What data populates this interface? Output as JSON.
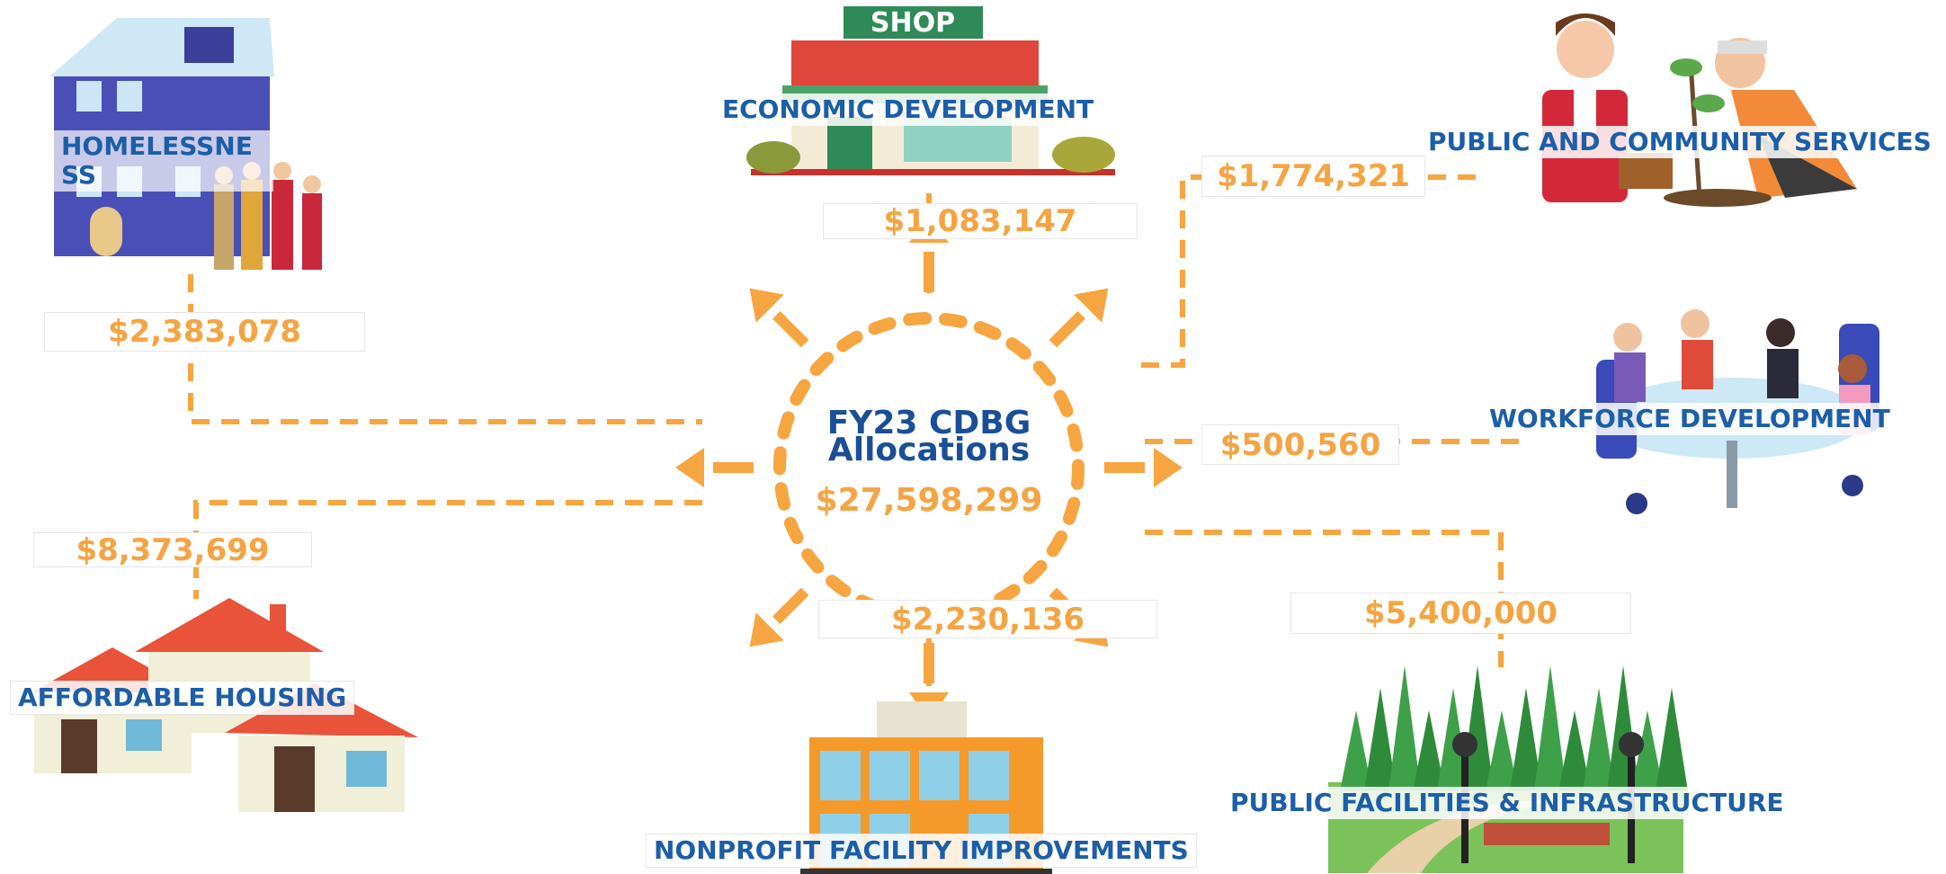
{
  "center": {
    "title_line1": "FY23 CDBG",
    "title_line2": "Allocations",
    "total": "$27,598,299"
  },
  "categories": [
    {
      "label": "HOMELESSNESS",
      "amount": "$2,383,078"
    },
    {
      "label": "ECONOMIC DEVELOPMENT",
      "amount": "$1,083,147"
    },
    {
      "label": "PUBLIC AND COMMUNITY SERVICES",
      "amount": "$1,774,321"
    },
    {
      "label": "WORKFORCE DEVELOPMENT",
      "amount": "$500,560"
    },
    {
      "label": "PUBLIC FACILITIES & INFRASTRUCTURE",
      "amount": "$5,400,000"
    },
    {
      "label": "NONPROFIT FACILITY IMPROVEMENTS",
      "amount": "$2,230,136"
    },
    {
      "label": "AFFORDABLE HOUSING",
      "amount": "$8,373,699"
    }
  ],
  "icons": {
    "shop_sign": "SHOP"
  }
}
